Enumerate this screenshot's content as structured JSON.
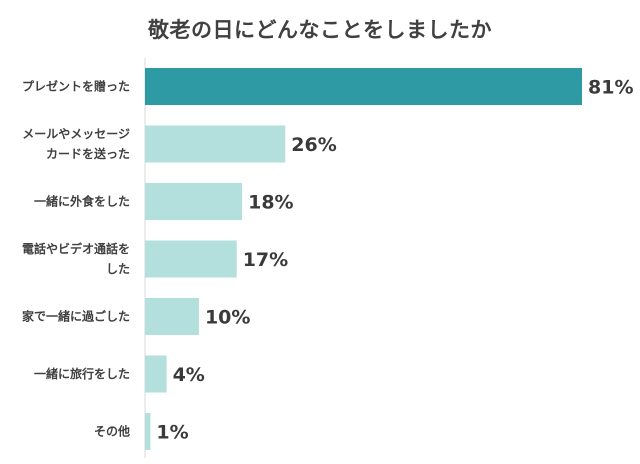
{
  "chart_data": {
    "type": "bar",
    "orientation": "horizontal",
    "title": "敬老の日にどんなことをしましたか",
    "categories": [
      [
        "プレゼントを贈った"
      ],
      [
        "メールやメッセージ",
        "カードを送った"
      ],
      [
        "一緒に外食をした"
      ],
      [
        "電話やビデオ通話を",
        "した"
      ],
      [
        "家で一緒に過ごした"
      ],
      [
        "一緒に旅行をした"
      ],
      [
        "その他"
      ]
    ],
    "values": [
      81,
      26,
      18,
      17,
      10,
      4,
      1
    ],
    "value_labels": [
      "81%",
      "26%",
      "18%",
      "17%",
      "10%",
      "4%",
      "1%"
    ],
    "xlim": [
      0,
      81
    ],
    "unit": "%",
    "grid": false,
    "colors": {
      "highlight": "#2e9aa3",
      "normal": "#b3dfdc",
      "axis": "#d9d9d9"
    }
  }
}
